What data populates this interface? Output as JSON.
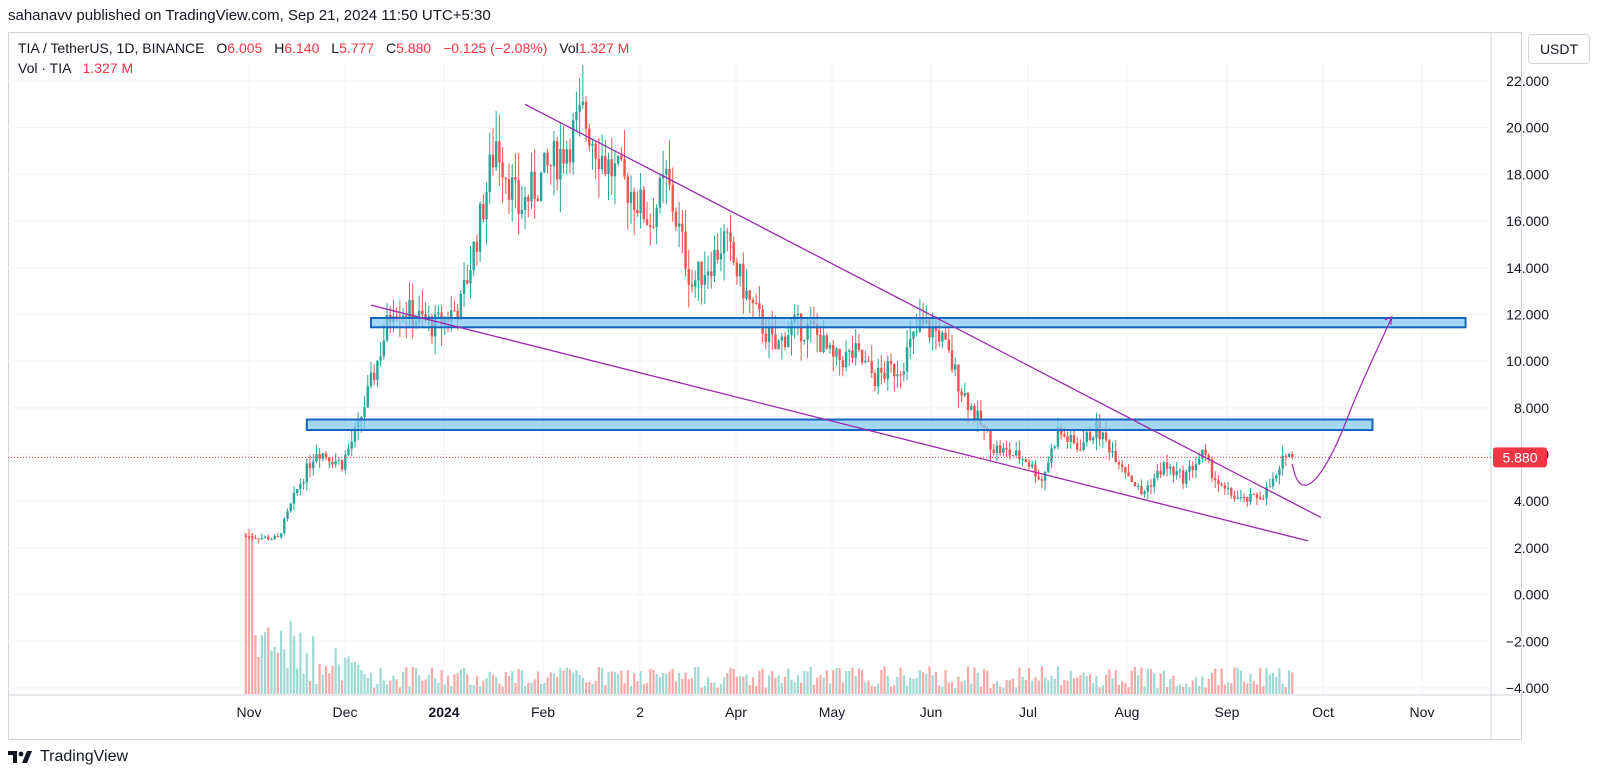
{
  "header": {
    "published": "sahanavv published on TradingView.com, Sep 21, 2024 11:50 UTC+5:30"
  },
  "legend": {
    "symbol": "TIA / TetherUS, 1D, BINANCE",
    "o_label": "O",
    "o_value": "6.005",
    "h_label": "H",
    "h_value": "6.140",
    "l_label": "L",
    "l_value": "5.777",
    "c_label": "C",
    "c_value": "5.880",
    "change": "−0.125 (−2.08%)",
    "vol_label": "Vol",
    "vol_value": "1.327 M",
    "vol_series_label": "Vol · TIA",
    "vol_series_value": "1.327 M"
  },
  "currency_button": "USDT",
  "footer": {
    "brand": "TradingView"
  },
  "colors": {
    "up": "#26a69a",
    "down": "#ef5350",
    "up_volume": "#9fd9d3",
    "down_volume": "#f7a9a7",
    "pattern_line": "#9c27b0",
    "zone_fill": "#7cc7f5",
    "zone_border": "#1565c0",
    "price_label_bg": "#f23645",
    "grid": "#f0f3fa"
  },
  "chart_data": {
    "type": "candlestick",
    "symbol": "TIA / TetherUS",
    "timeframe": "1D",
    "exchange": "BINANCE",
    "y_ticks": [
      "22.000",
      "20.000",
      "18.000",
      "16.000",
      "14.000",
      "12.000",
      "10.000",
      "8.000",
      "6.000",
      "4.000",
      "2.000",
      "0.000",
      "−2.000",
      "−4.000"
    ],
    "y_range": [
      -4,
      22
    ],
    "x_ticks": [
      "Nov",
      "Dec",
      "2024",
      "Feb",
      "2",
      "Apr",
      "May",
      "Jun",
      "Jul",
      "Aug",
      "Sep",
      "Oct",
      "Nov"
    ],
    "last_price": 5.88,
    "last_price_label": "5.880",
    "price_path": [
      [
        "2023-10-31",
        2.5
      ],
      [
        "2023-11-10",
        2.4
      ],
      [
        "2023-11-16",
        4.5
      ],
      [
        "2023-11-22",
        6.2
      ],
      [
        "2023-11-30",
        5.6
      ],
      [
        "2023-12-05",
        7.2
      ],
      [
        "2023-12-10",
        9.5
      ],
      [
        "2023-12-16",
        12.5
      ],
      [
        "2023-12-24",
        11.8
      ],
      [
        "2023-12-29",
        11.5
      ],
      [
        "2024-01-06",
        12.4
      ],
      [
        "2024-01-12",
        16.0
      ],
      [
        "2024-01-17",
        19.5
      ],
      [
        "2024-01-24",
        16.5
      ],
      [
        "2024-01-31",
        17.8
      ],
      [
        "2024-02-08",
        19.3
      ],
      [
        "2024-02-13",
        20.5
      ],
      [
        "2024-02-20",
        18.5
      ],
      [
        "2024-02-28",
        17.3
      ],
      [
        "2024-03-05",
        16.0
      ],
      [
        "2024-03-10",
        17.8
      ],
      [
        "2024-03-18",
        13.3
      ],
      [
        "2024-03-25",
        14.5
      ],
      [
        "2024-03-28",
        15.2
      ],
      [
        "2024-04-05",
        12.5
      ],
      [
        "2024-04-13",
        10.5
      ],
      [
        "2024-04-18",
        11.5
      ],
      [
        "2024-04-25",
        11.3
      ],
      [
        "2024-05-01",
        10.0
      ],
      [
        "2024-05-08",
        10.3
      ],
      [
        "2024-05-14",
        9.3
      ],
      [
        "2024-05-22",
        9.8
      ],
      [
        "2024-05-28",
        11.5
      ],
      [
        "2024-06-03",
        11.2
      ],
      [
        "2024-06-10",
        8.8
      ],
      [
        "2024-06-15",
        7.5
      ],
      [
        "2024-06-20",
        6.3
      ],
      [
        "2024-06-30",
        5.8
      ],
      [
        "2024-07-05",
        4.9
      ],
      [
        "2024-07-10",
        7.0
      ],
      [
        "2024-07-16",
        6.3
      ],
      [
        "2024-07-22",
        7.1
      ],
      [
        "2024-07-30",
        5.6
      ],
      [
        "2024-08-05",
        4.3
      ],
      [
        "2024-08-12",
        5.5
      ],
      [
        "2024-08-18",
        5.0
      ],
      [
        "2024-08-24",
        6.0
      ],
      [
        "2024-08-30",
        4.5
      ],
      [
        "2024-09-06",
        4.0
      ],
      [
        "2024-09-12",
        4.3
      ],
      [
        "2024-09-17",
        5.2
      ],
      [
        "2024-09-19",
        6.2
      ],
      [
        "2024-09-21",
        5.88
      ]
    ],
    "annotations": {
      "upper_trendline": [
        [
          "2024-01-26",
          21.0
        ],
        [
          "2024-09-30",
          3.3
        ]
      ],
      "lower_trendline": [
        [
          "2023-12-09",
          12.4
        ],
        [
          "2024-09-26",
          2.3
        ]
      ],
      "zone_upper": {
        "from": "2023-12-09",
        "to": "2024-11-14",
        "low": 11.45,
        "high": 11.85
      },
      "zone_lower": {
        "from": "2023-11-19",
        "to": "2024-10-16",
        "low": 7.05,
        "high": 7.5
      },
      "projection_arrow": [
        [
          "2024-09-21",
          5.6
        ],
        [
          "2024-09-24",
          4.4
        ],
        [
          "2024-10-08",
          7.5
        ],
        [
          "2024-10-22",
          11.9
        ]
      ]
    }
  }
}
